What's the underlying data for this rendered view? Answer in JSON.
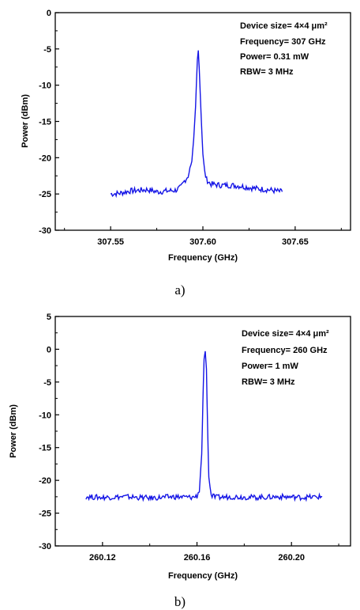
{
  "chart_data": [
    {
      "type": "line",
      "panel_label": "a)",
      "xlabel": "Frequency (GHz)",
      "ylabel": "Power (dBm)",
      "xlim": [
        307.52,
        307.68
      ],
      "ylim": [
        -30,
        0
      ],
      "x_ticks": [
        307.55,
        307.6,
        307.65
      ],
      "x_tick_labels": [
        "307.55",
        "307.60",
        "307.65"
      ],
      "y_ticks": [
        0,
        -5,
        -10,
        -15,
        -20,
        -25,
        -30
      ],
      "y_tick_labels": [
        "0",
        "-5",
        "-10",
        "-15",
        "-20",
        "-25",
        "-30"
      ],
      "grid": false,
      "annotations": [
        "Device size= 4×4 μm²",
        "Frequency= 307 GHz",
        "Power= 0.31 mW",
        "RBW= 3 MHz"
      ],
      "series": [
        {
          "color": "#1515e6",
          "x": [
            307.55,
            307.555,
            307.56,
            307.565,
            307.57,
            307.575,
            307.58,
            307.585,
            307.588,
            307.59,
            307.592,
            307.594,
            307.595,
            307.596,
            307.597,
            307.5975,
            307.598,
            307.599,
            307.6,
            307.601,
            307.602,
            307.604,
            307.606,
            307.61,
            307.615,
            307.62,
            307.625,
            307.63,
            307.635,
            307.64,
            307.643
          ],
          "y": [
            -25.0,
            -24.9,
            -24.6,
            -24.5,
            -24.4,
            -24.7,
            -24.6,
            -24.5,
            -24.1,
            -23.2,
            -22.5,
            -20.5,
            -17.5,
            -13.0,
            -6.5,
            -5.2,
            -7.5,
            -14.0,
            -19.5,
            -22.0,
            -23.0,
            -23.6,
            -23.7,
            -23.8,
            -23.8,
            -23.9,
            -24.1,
            -24.3,
            -24.4,
            -24.6,
            -24.7
          ]
        }
      ]
    },
    {
      "type": "line",
      "panel_label": "b)",
      "xlabel": "Frequency (GHz)",
      "ylabel": "Power (dBm)",
      "xlim": [
        260.1,
        260.225
      ],
      "ylim": [
        -30,
        5
      ],
      "x_ticks": [
        260.12,
        260.16,
        260.2
      ],
      "x_tick_labels": [
        "260.12",
        "260.16",
        "260.20"
      ],
      "y_ticks": [
        5,
        0,
        -5,
        -10,
        -15,
        -20,
        -25,
        -30
      ],
      "y_tick_labels": [
        "5",
        "0",
        "-5",
        "-10",
        "-15",
        "-20",
        "-25",
        "-30"
      ],
      "grid": false,
      "annotations": [
        "Device size= 4×4 μm²",
        "Frequency= 260 GHz",
        "Power= 1 mW",
        "RBW= 3 MHz"
      ],
      "series": [
        {
          "color": "#1515e6",
          "x": [
            260.113,
            260.12,
            260.13,
            260.14,
            260.15,
            260.158,
            260.16,
            260.161,
            260.162,
            260.1625,
            260.163,
            260.1635,
            260.164,
            260.1645,
            260.165,
            260.166,
            260.168,
            260.175,
            260.185,
            260.195,
            260.205,
            260.213
          ],
          "y": [
            -22.5,
            -22.6,
            -22.5,
            -22.7,
            -22.5,
            -22.6,
            -22.4,
            -21.5,
            -16.0,
            -8.0,
            -1.5,
            -0.3,
            -3.0,
            -12.0,
            -19.5,
            -22.3,
            -22.6,
            -22.5,
            -22.6,
            -22.5,
            -22.6,
            -22.5
          ]
        }
      ]
    }
  ]
}
